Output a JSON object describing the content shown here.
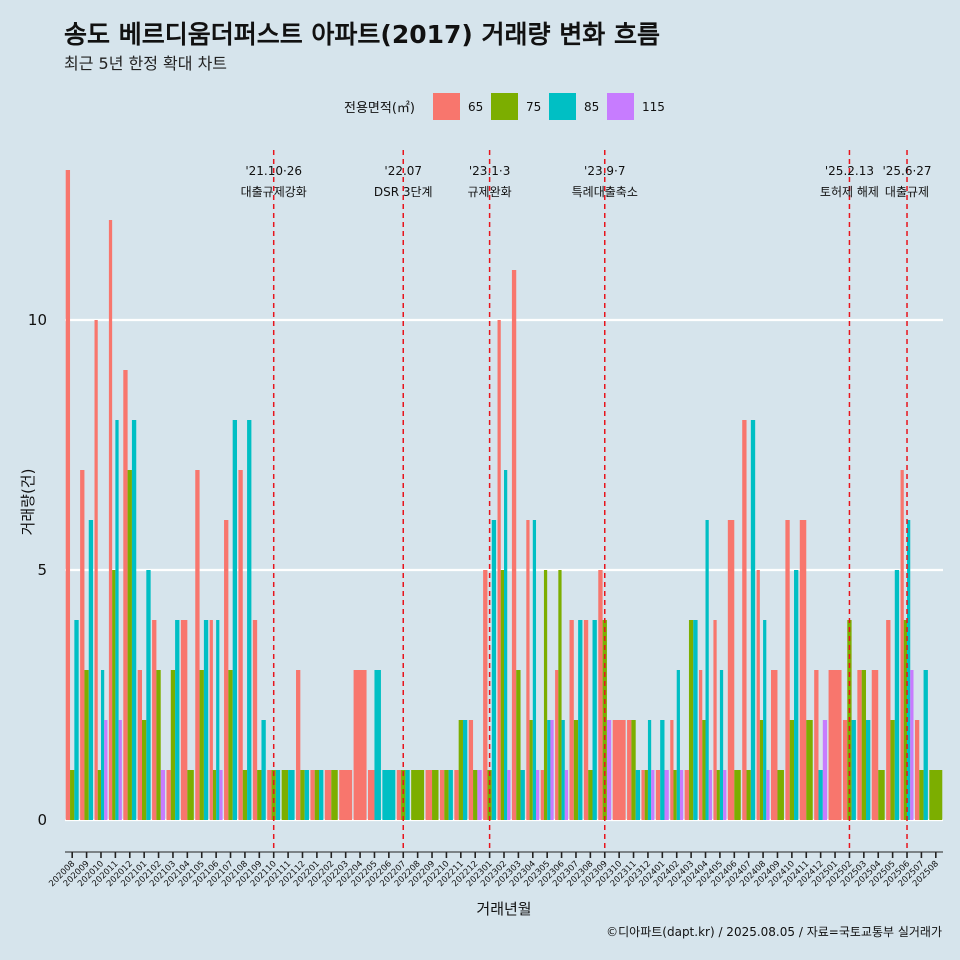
{
  "chart_data": {
    "type": "bar",
    "title": "송도 베르디움더퍼스트 아파트(2017) 거래량 변화 흐름",
    "subtitle": "최근 5년 한정 확대 차트",
    "xlabel": "거래년월",
    "ylabel": "거래량(건)",
    "caption": "©디아파트(dapt.kr) / 2025.08.05 / 자료=국토교통부 실거래가",
    "legend": {
      "title": "전용면적(㎡)",
      "position": "top"
    },
    "ylim": [
      -0.6,
      13.4
    ],
    "yticks": [
      0,
      5,
      10
    ],
    "grid": true,
    "series": [
      {
        "name": "65",
        "color": "#F8766D"
      },
      {
        "name": "75",
        "color": "#7CAE00"
      },
      {
        "name": "85",
        "color": "#00BFC4"
      },
      {
        "name": "115",
        "color": "#C77CFF"
      }
    ],
    "categories": [
      "202008",
      "202009",
      "202010",
      "202011",
      "202012",
      "202101",
      "202102",
      "202103",
      "202104",
      "202105",
      "202106",
      "202107",
      "202108",
      "202109",
      "202110",
      "202111",
      "202112",
      "202201",
      "202202",
      "202203",
      "202204",
      "202205",
      "202206",
      "202207",
      "202208",
      "202209",
      "202210",
      "202211",
      "202212",
      "202301",
      "202302",
      "202303",
      "202304",
      "202305",
      "202306",
      "202307",
      "202308",
      "202309",
      "202310",
      "202311",
      "202312",
      "202401",
      "202402",
      "202403",
      "202404",
      "202405",
      "202406",
      "202407",
      "202408",
      "202409",
      "202410",
      "202411",
      "202412",
      "202501",
      "202502",
      "202503",
      "202504",
      "202505",
      "202506",
      "202507",
      "202508"
    ],
    "months": [
      {
        "m": "202008",
        "v": [
          13,
          1,
          4,
          0
        ]
      },
      {
        "m": "202009",
        "v": [
          7,
          3,
          6,
          0
        ]
      },
      {
        "m": "202010",
        "v": [
          10,
          1,
          3,
          2
        ]
      },
      {
        "m": "202011",
        "v": [
          12,
          5,
          8,
          2
        ]
      },
      {
        "m": "202012",
        "v": [
          9,
          7,
          8,
          0
        ]
      },
      {
        "m": "202101",
        "v": [
          3,
          2,
          5,
          0
        ]
      },
      {
        "m": "202102",
        "v": [
          4,
          3,
          0,
          1
        ]
      },
      {
        "m": "202103",
        "v": [
          1,
          3,
          4,
          0
        ]
      },
      {
        "m": "202104",
        "v": [
          4,
          1,
          0,
          0
        ]
      },
      {
        "m": "202105",
        "v": [
          7,
          3,
          4,
          0
        ]
      },
      {
        "m": "202106",
        "v": [
          4,
          1,
          4,
          1
        ]
      },
      {
        "m": "202107",
        "v": [
          6,
          3,
          8,
          0
        ]
      },
      {
        "m": "202108",
        "v": [
          7,
          1,
          8,
          0
        ]
      },
      {
        "m": "202109",
        "v": [
          4,
          1,
          2,
          0
        ]
      },
      {
        "m": "202110",
        "v": [
          1,
          1,
          1,
          0
        ]
      },
      {
        "m": "202111",
        "v": [
          0,
          1,
          1,
          0
        ]
      },
      {
        "m": "202112",
        "v": [
          3,
          1,
          1,
          0
        ]
      },
      {
        "m": "202201",
        "v": [
          1,
          1,
          1,
          0
        ]
      },
      {
        "m": "202202",
        "v": [
          1,
          1,
          0,
          0
        ]
      },
      {
        "m": "202203",
        "v": [
          1,
          0,
          0,
          0
        ]
      },
      {
        "m": "202204",
        "v": [
          3,
          0,
          0,
          0
        ]
      },
      {
        "m": "202205",
        "v": [
          1,
          0,
          3,
          0
        ]
      },
      {
        "m": "202206",
        "v": [
          0,
          0,
          1,
          0
        ]
      },
      {
        "m": "202207",
        "v": [
          1,
          1,
          1,
          0
        ]
      },
      {
        "m": "202208",
        "v": [
          0,
          1,
          0,
          0
        ]
      },
      {
        "m": "202209",
        "v": [
          1,
          1,
          0,
          0
        ]
      },
      {
        "m": "202210",
        "v": [
          1,
          1,
          1,
          0
        ]
      },
      {
        "m": "202211",
        "v": [
          1,
          2,
          2,
          0
        ]
      },
      {
        "m": "202212",
        "v": [
          2,
          1,
          0,
          1
        ]
      },
      {
        "m": "202301",
        "v": [
          5,
          1,
          6,
          0
        ]
      },
      {
        "m": "202302",
        "v": [
          10,
          5,
          7,
          1
        ]
      },
      {
        "m": "202303",
        "v": [
          11,
          3,
          1,
          0
        ]
      },
      {
        "m": "202304",
        "v": [
          6,
          2,
          6,
          1
        ]
      },
      {
        "m": "202305",
        "v": [
          1,
          5,
          2,
          2
        ]
      },
      {
        "m": "202306",
        "v": [
          3,
          5,
          2,
          1
        ]
      },
      {
        "m": "202307",
        "v": [
          4,
          2,
          4,
          0
        ]
      },
      {
        "m": "202308",
        "v": [
          4,
          1,
          4,
          0
        ]
      },
      {
        "m": "202309",
        "v": [
          5,
          4,
          0,
          2
        ]
      },
      {
        "m": "202310",
        "v": [
          2,
          0,
          0,
          0
        ]
      },
      {
        "m": "202311",
        "v": [
          2,
          2,
          1,
          0
        ]
      },
      {
        "m": "202312",
        "v": [
          1,
          1,
          2,
          1
        ]
      },
      {
        "m": "202401",
        "v": [
          1,
          0,
          2,
          1
        ]
      },
      {
        "m": "202402",
        "v": [
          2,
          1,
          3,
          1
        ]
      },
      {
        "m": "202403",
        "v": [
          1,
          4,
          4,
          0
        ]
      },
      {
        "m": "202404",
        "v": [
          3,
          2,
          6,
          1
        ]
      },
      {
        "m": "202405",
        "v": [
          4,
          1,
          3,
          1
        ]
      },
      {
        "m": "202406",
        "v": [
          6,
          1,
          0,
          0
        ]
      },
      {
        "m": "202407",
        "v": [
          8,
          1,
          8,
          0
        ]
      },
      {
        "m": "202408",
        "v": [
          5,
          2,
          4,
          1
        ]
      },
      {
        "m": "202409",
        "v": [
          3,
          1,
          0,
          0
        ]
      },
      {
        "m": "202410",
        "v": [
          6,
          2,
          5,
          0
        ]
      },
      {
        "m": "202411",
        "v": [
          6,
          2,
          0,
          0
        ]
      },
      {
        "m": "202412",
        "v": [
          3,
          0,
          1,
          2
        ]
      },
      {
        "m": "202501",
        "v": [
          3,
          0,
          0,
          0
        ]
      },
      {
        "m": "202502",
        "v": [
          2,
          4,
          2,
          0
        ]
      },
      {
        "m": "202503",
        "v": [
          3,
          3,
          2,
          0
        ]
      },
      {
        "m": "202504",
        "v": [
          3,
          1,
          0,
          0
        ]
      },
      {
        "m": "202505",
        "v": [
          4,
          2,
          5,
          0
        ]
      },
      {
        "m": "202506",
        "v": [
          7,
          4,
          6,
          3
        ]
      },
      {
        "m": "202507",
        "v": [
          2,
          1,
          3,
          0
        ]
      },
      {
        "m": "202508",
        "v": [
          0,
          1,
          0,
          0
        ]
      }
    ],
    "events": [
      {
        "date": "202110",
        "label_date": "'21.10·26",
        "label": "대출규제강화"
      },
      {
        "date": "202207",
        "label_date": "'22.07",
        "label": "DSR 3단계"
      },
      {
        "date": "202301",
        "label_date": "'23.1·3",
        "label": "규제완화"
      },
      {
        "date": "202309",
        "label_date": "'23.9·7",
        "label": "특례대출축소"
      },
      {
        "date": "202502",
        "label_date": "'25.2.13",
        "label": "토허제 해제"
      },
      {
        "date": "202506",
        "label_date": "'25.6·27",
        "label": "대출규제"
      }
    ]
  }
}
